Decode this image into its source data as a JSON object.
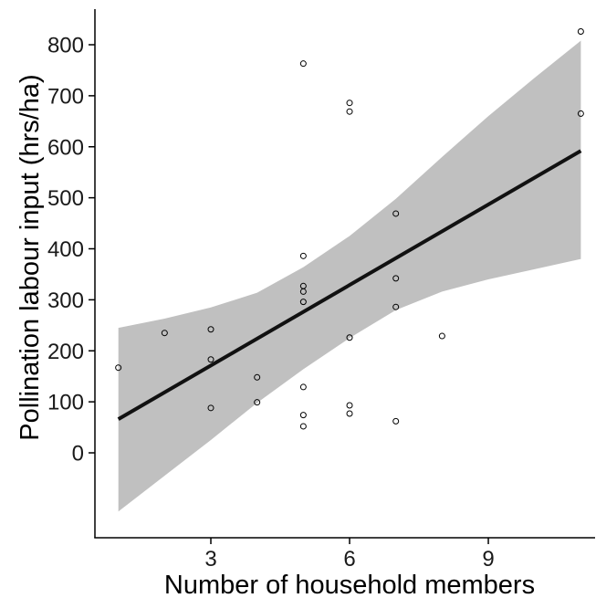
{
  "chart_data": {
    "type": "scatter",
    "title": "",
    "xlabel": "Number of household members",
    "ylabel": "Pollination labour input (hrs/ha)",
    "xlim": [
      0.5,
      11.3
    ],
    "ylim": [
      -165,
      870
    ],
    "x_ticks": [
      3,
      6,
      9
    ],
    "x_tick_labels": [
      "3",
      "6",
      "9"
    ],
    "y_ticks": [
      0,
      100,
      200,
      300,
      400,
      500,
      600,
      700,
      800
    ],
    "y_tick_labels": [
      "0",
      "100",
      "200",
      "300",
      "400",
      "500",
      "600",
      "700",
      "800"
    ],
    "grid": false,
    "legend": "none",
    "points": [
      {
        "x": 1,
        "y": 167
      },
      {
        "x": 2,
        "y": 235
      },
      {
        "x": 3,
        "y": 242
      },
      {
        "x": 3,
        "y": 183
      },
      {
        "x": 3,
        "y": 88
      },
      {
        "x": 4,
        "y": 148
      },
      {
        "x": 4,
        "y": 99
      },
      {
        "x": 5,
        "y": 763
      },
      {
        "x": 5,
        "y": 386
      },
      {
        "x": 5,
        "y": 327
      },
      {
        "x": 5,
        "y": 316
      },
      {
        "x": 5,
        "y": 296
      },
      {
        "x": 5,
        "y": 129
      },
      {
        "x": 5,
        "y": 74
      },
      {
        "x": 5,
        "y": 52
      },
      {
        "x": 6,
        "y": 686
      },
      {
        "x": 6,
        "y": 669
      },
      {
        "x": 6,
        "y": 226
      },
      {
        "x": 6,
        "y": 93
      },
      {
        "x": 6,
        "y": 77
      },
      {
        "x": 7,
        "y": 469
      },
      {
        "x": 7,
        "y": 342
      },
      {
        "x": 7,
        "y": 286
      },
      {
        "x": 7,
        "y": 62
      },
      {
        "x": 8,
        "y": 229
      },
      {
        "x": 11,
        "y": 826
      },
      {
        "x": 11,
        "y": 665
      }
    ],
    "fit_line": {
      "x": [
        1,
        11
      ],
      "y": [
        66,
        592
      ]
    },
    "confidence_band": {
      "x": [
        1,
        2,
        3,
        4,
        5,
        6,
        7,
        8,
        9,
        10,
        11
      ],
      "lower": [
        -115,
        -45,
        25,
        98,
        164,
        225,
        280,
        316,
        340,
        360,
        380
      ],
      "upper": [
        245,
        263,
        285,
        314,
        364,
        425,
        498,
        580,
        660,
        735,
        808
      ]
    },
    "colors": {
      "band": "#c0c0c0",
      "line": "#111111",
      "points": "#000000"
    }
  }
}
